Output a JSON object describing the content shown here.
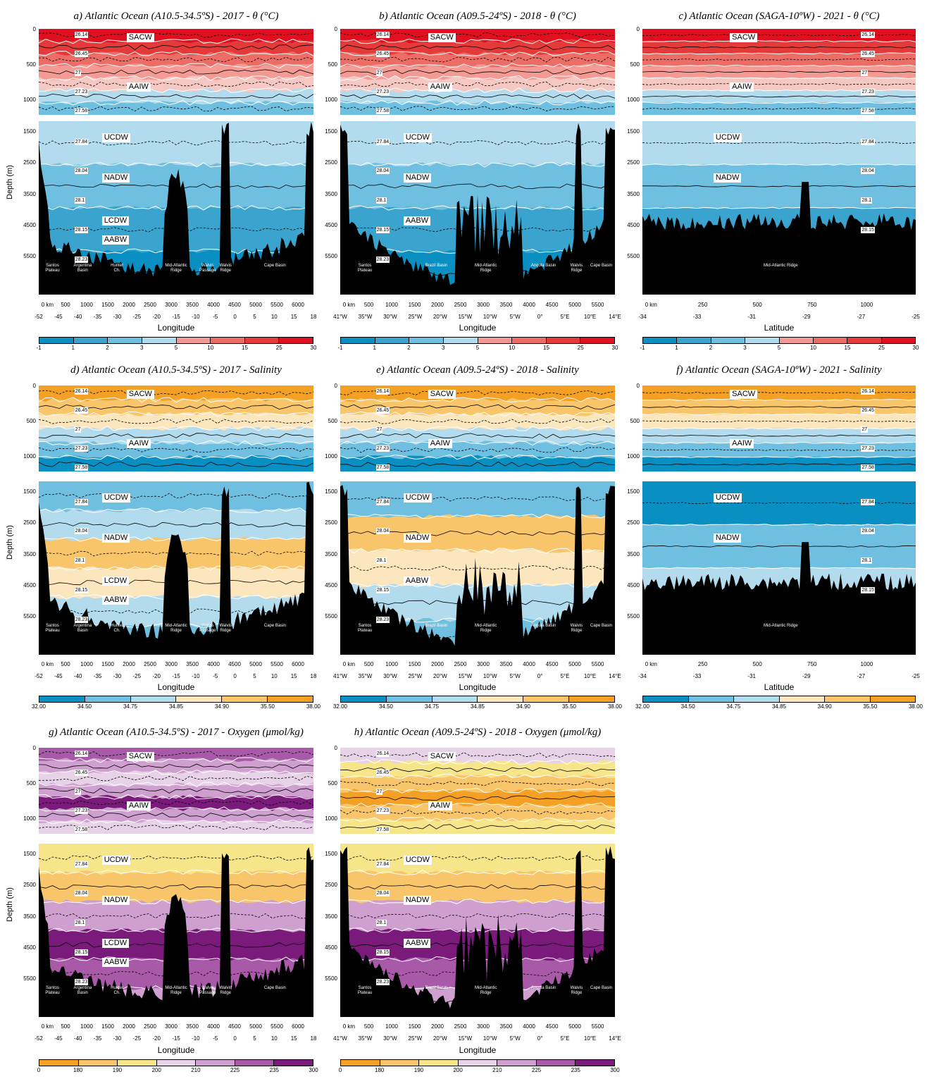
{
  "chart_data": [
    {
      "id": "a",
      "type": "heatmap",
      "title": "a) Atlantic Ocean (A10.5-34.5ºS) - 2017 - θ (°C)",
      "variable": "temp",
      "section": "A10",
      "ylabel": "Depth (m)",
      "xlabel": "Longitude",
      "water_masses_upper": [
        "SACW",
        "AAIW"
      ],
      "water_masses_lower": [
        "UCDW",
        "NADW",
        "LCDW",
        "AABW"
      ],
      "colorbar": {
        "ticks": [
          "-1",
          "1",
          "2",
          "3",
          "5",
          "10",
          "15",
          "25",
          "30"
        ]
      }
    },
    {
      "id": "b",
      "type": "heatmap",
      "title": "b) Atlantic Ocean (A09.5-24ºS) - 2018 - θ (°C)",
      "variable": "temp",
      "section": "A09",
      "ylabel": "",
      "xlabel": "Longitude",
      "water_masses_upper": [
        "SACW",
        "AAIW"
      ],
      "water_masses_lower": [
        "UCDW",
        "NADW",
        "AABW"
      ],
      "colorbar": {
        "ticks": [
          "-1",
          "1",
          "2",
          "3",
          "5",
          "10",
          "15",
          "25",
          "30"
        ]
      }
    },
    {
      "id": "c",
      "type": "heatmap",
      "title": "c) Atlantic Ocean (SAGA-10ºW) - 2021 - θ (°C)",
      "variable": "temp",
      "section": "SAGA",
      "ylabel": "",
      "xlabel": "Latitude",
      "water_masses_upper": [
        "SACW",
        "AAIW"
      ],
      "water_masses_lower": [
        "UCDW",
        "NADW"
      ],
      "colorbar": {
        "ticks": [
          "-1",
          "1",
          "2",
          "3",
          "5",
          "10",
          "15",
          "25",
          "30"
        ]
      }
    },
    {
      "id": "d",
      "type": "heatmap",
      "title": "d) Atlantic Ocean (A10.5-34.5ºS) - 2017 - Salinity",
      "variable": "sal",
      "section": "A10",
      "ylabel": "Depth (m)",
      "xlabel": "Longitude",
      "water_masses_upper": [
        "SACW",
        "AAIW"
      ],
      "water_masses_lower": [
        "UCDW",
        "NADW",
        "LCDW",
        "AABW"
      ],
      "colorbar": {
        "ticks": [
          "32.00",
          "34.50",
          "34.75",
          "34.85",
          "34.90",
          "35.50",
          "38.00"
        ]
      }
    },
    {
      "id": "e",
      "type": "heatmap",
      "title": "e) Atlantic Ocean (A09.5-24ºS) - 2018 - Salinity",
      "variable": "sal",
      "section": "A09",
      "ylabel": "",
      "xlabel": "Longitude",
      "water_masses_upper": [
        "SACW",
        "AAIW"
      ],
      "water_masses_lower": [
        "UCDW",
        "NADW",
        "AABW"
      ],
      "colorbar": {
        "ticks": [
          "32.00",
          "34.50",
          "34.75",
          "34.85",
          "34.90",
          "35.50",
          "38.00"
        ]
      }
    },
    {
      "id": "f",
      "type": "heatmap",
      "title": "f) Atlantic Ocean (SAGA-10ºW) - 2021 - Salinity",
      "variable": "sal",
      "section": "SAGA",
      "ylabel": "",
      "xlabel": "Latitude",
      "water_masses_upper": [
        "SACW",
        "AAIW"
      ],
      "water_masses_lower": [
        "UCDW",
        "NADW"
      ],
      "colorbar": {
        "ticks": [
          "32.00",
          "34.50",
          "34.75",
          "34.85",
          "34.90",
          "35.50",
          "38.00"
        ]
      }
    },
    {
      "id": "g",
      "type": "heatmap",
      "title": "g) Atlantic Ocean (A10.5-34.5ºS) - 2017 - Oxygen (μmol/kg)",
      "variable": "oxy",
      "section": "A10",
      "ylabel": "Depth (m)",
      "xlabel": "Longitude",
      "water_masses_upper": [
        "SACW",
        "AAIW"
      ],
      "water_masses_lower": [
        "UCDW",
        "NADW",
        "LCDW",
        "AABW"
      ],
      "colorbar": {
        "ticks": [
          "0",
          "180",
          "190",
          "200",
          "210",
          "225",
          "235",
          "300"
        ]
      }
    },
    {
      "id": "h",
      "type": "heatmap",
      "title": "h) Atlantic Ocean (A09.5-24ºS) - 2018 - Oxygen (μmol/kg)",
      "variable": "oxy",
      "section": "A09",
      "ylabel": "",
      "xlabel": "Longitude",
      "water_masses_upper": [
        "SACW",
        "AAIW"
      ],
      "water_masses_lower": [
        "UCDW",
        "NADW",
        "AABW"
      ],
      "colorbar": {
        "ticks": [
          "0",
          "180",
          "190",
          "200",
          "210",
          "225",
          "235",
          "300"
        ]
      }
    }
  ],
  "colors": {
    "temp": [
      "#0a8fc2",
      "#3aa4cf",
      "#6fbfe0",
      "#b3dbee",
      "#f6c8c3",
      "#f29a93",
      "#ec6c66",
      "#e53a3a",
      "#e01020"
    ],
    "sal": [
      "#0a8fc2",
      "#6fbfe0",
      "#b3dbee",
      "#fbe6bd",
      "#f8c56b",
      "#f4a024"
    ],
    "oxy": [
      "#f4a024",
      "#f8c56b",
      "#f7e58a",
      "#e8d2e8",
      "#cfa0cf",
      "#a85aa8",
      "#7a1a7a"
    ],
    "bottom": "#000000"
  },
  "sections": {
    "A10": {
      "depth_ticks_upper": [
        "0",
        "500",
        "1000"
      ],
      "depth_ticks_lower": [
        "1500",
        "2500",
        "3500",
        "4500",
        "5500"
      ],
      "km_ticks": [
        "0",
        "km",
        "500",
        "1000",
        "1500",
        "2000",
        "2500",
        "3000",
        "3500",
        "4000",
        "4500",
        "5000",
        "5500",
        "6000"
      ],
      "lon_ticks": [
        "-52",
        "-45",
        "-40",
        "-35",
        "-30",
        "-25",
        "-20",
        "-15",
        "-10",
        "-5",
        "0",
        "5",
        "10",
        "15",
        "18"
      ],
      "features": [
        {
          "name": "Santos\nPlateau",
          "fx": 0.05
        },
        {
          "name": "Argentina\nBasin",
          "fx": 0.16
        },
        {
          "name": "Hunter\nCh.",
          "fx": 0.285
        },
        {
          "name": "Mid-Atlantic\nRidge",
          "fx": 0.5
        },
        {
          "name": "Walvis\nPassage",
          "fx": 0.615
        },
        {
          "name": "Walvis\nRidge",
          "fx": 0.68
        },
        {
          "name": "Cape Basin",
          "fx": 0.86
        }
      ]
    },
    "A09": {
      "depth_ticks_upper": [
        "0",
        "500",
        "1000"
      ],
      "depth_ticks_lower": [
        "1500",
        "2500",
        "3500",
        "4500",
        "5500"
      ],
      "km_ticks": [
        "0",
        "km",
        "500",
        "1000",
        "1500",
        "2000",
        "2500",
        "3000",
        "3500",
        "4000",
        "4500",
        "5000",
        "5500"
      ],
      "lon_ticks": [
        "41°W",
        "35°W",
        "30°W",
        "25°W",
        "20°W",
        "15°W",
        "10°W",
        "5°W",
        "0°",
        "5°E",
        "10°E",
        "14°E"
      ],
      "features": [
        {
          "name": "Santos\nPlateau",
          "fx": 0.09
        },
        {
          "name": "Brazil Basin",
          "fx": 0.35
        },
        {
          "name": "Mid-Atlantic\nRidge",
          "fx": 0.53
        },
        {
          "name": "Angola Basin",
          "fx": 0.74
        },
        {
          "name": "Walvis\nRidge",
          "fx": 0.86
        },
        {
          "name": "Cape Basin",
          "fx": 0.95
        }
      ]
    },
    "SAGA": {
      "depth_ticks_upper": [
        "0",
        "500",
        "1000"
      ],
      "depth_ticks_lower": [
        "1500",
        "2500",
        "3500",
        "4500",
        "5500"
      ],
      "km_ticks": [
        "0",
        "km",
        "250",
        "500",
        "750",
        "1000"
      ],
      "lon_ticks": [
        "-34",
        "-33",
        "-31",
        "-29",
        "-27",
        "-25"
      ],
      "features": [
        {
          "name": "Mid-Atlantic Ridge",
          "fx": 0.5
        }
      ]
    }
  },
  "density_labels": {
    "upper": [
      "26.14",
      "26.45",
      "27",
      "27.23",
      "27.58"
    ],
    "lower": [
      "27.84",
      "28.04",
      "28.1",
      "28.15",
      "28.23"
    ]
  }
}
